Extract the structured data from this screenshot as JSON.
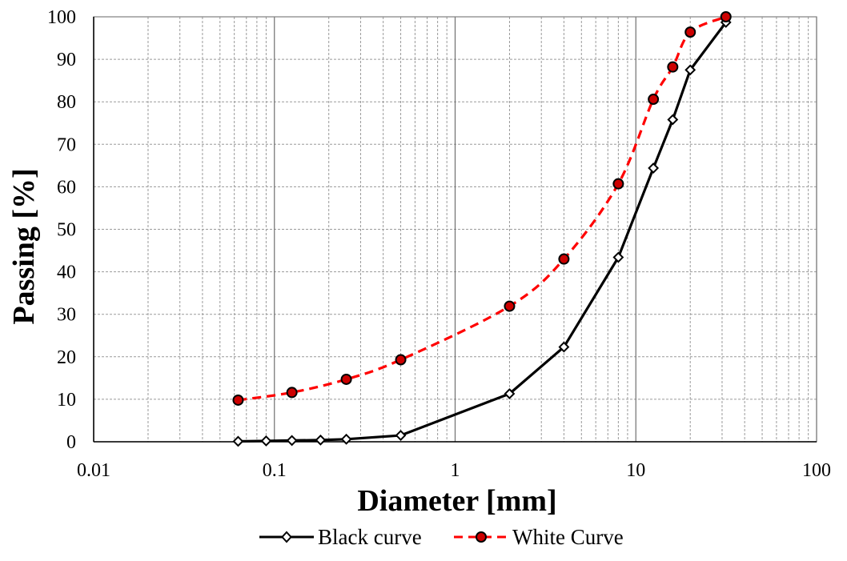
{
  "chart_data": {
    "type": "line",
    "xlabel": "Diameter [mm]",
    "ylabel": "Passing [%]",
    "x_scale": "log",
    "xlim": [
      0.01,
      100
    ],
    "ylim": [
      0,
      100
    ],
    "x_ticks": [
      "0.01",
      "0.1",
      "1",
      "10",
      "100"
    ],
    "y_ticks": [
      "0",
      "10",
      "20",
      "30",
      "40",
      "50",
      "60",
      "70",
      "80",
      "90",
      "100"
    ],
    "grid": true,
    "legend_position": "bottom",
    "series": [
      {
        "name": "Black curve",
        "color": "#000000",
        "line_style": "solid",
        "marker": "diamond",
        "marker_fill": "#ffffff",
        "smooth": false,
        "x": [
          0.063,
          0.09,
          0.125,
          0.18,
          0.25,
          0.5,
          2,
          4,
          8,
          12.5,
          16,
          20,
          31.5
        ],
        "y": [
          0.1,
          0.2,
          0.3,
          0.4,
          0.6,
          1.5,
          11.3,
          22.3,
          43.4,
          64.4,
          75.8,
          87.5,
          98.7
        ]
      },
      {
        "name": "White Curve",
        "color": "#ff0000",
        "line_style": "dashed",
        "marker": "circle",
        "marker_fill": "#cc0000",
        "smooth": true,
        "x": [
          0.063,
          0.125,
          0.25,
          0.5,
          2,
          4,
          8,
          12.5,
          16,
          20,
          31.5
        ],
        "y": [
          9.8,
          11.6,
          14.7,
          19.3,
          31.9,
          43.0,
          60.7,
          80.6,
          88.2,
          96.4,
          100
        ]
      }
    ]
  }
}
